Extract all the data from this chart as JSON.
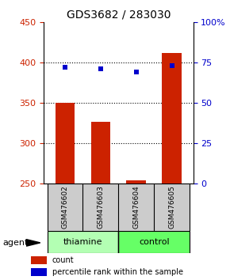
{
  "title": "GDS3682 / 283030",
  "samples": [
    "GSM476602",
    "GSM476603",
    "GSM476604",
    "GSM476605"
  ],
  "counts": [
    350,
    327,
    254,
    412
  ],
  "percentiles": [
    72,
    71,
    69,
    73
  ],
  "ylim_left": [
    250,
    450
  ],
  "ylim_right": [
    0,
    100
  ],
  "yticks_left": [
    250,
    300,
    350,
    400,
    450
  ],
  "yticks_right": [
    0,
    25,
    50,
    75,
    100
  ],
  "bar_color": "#cc2200",
  "dot_color": "#0000cc",
  "groups": [
    {
      "label": "thiamine",
      "samples": [
        0,
        1
      ],
      "color": "#b3ffb3"
    },
    {
      "label": "control",
      "samples": [
        2,
        3
      ],
      "color": "#66ff66"
    }
  ],
  "agent_label": "agent",
  "legend_count_label": "count",
  "legend_pct_label": "percentile rank within the sample",
  "left_axis_color": "#cc2200",
  "right_axis_color": "#0000cc",
  "grid_color": "#000000",
  "sample_box_color": "#cccccc",
  "background_color": "#ffffff",
  "main_axes": [
    0.19,
    0.345,
    0.65,
    0.575
  ],
  "sample_axes": [
    0.19,
    0.175,
    0.65,
    0.17
  ],
  "group_axes": [
    0.19,
    0.095,
    0.65,
    0.08
  ],
  "legend_axes": [
    0.1,
    0.01,
    0.85,
    0.085
  ]
}
